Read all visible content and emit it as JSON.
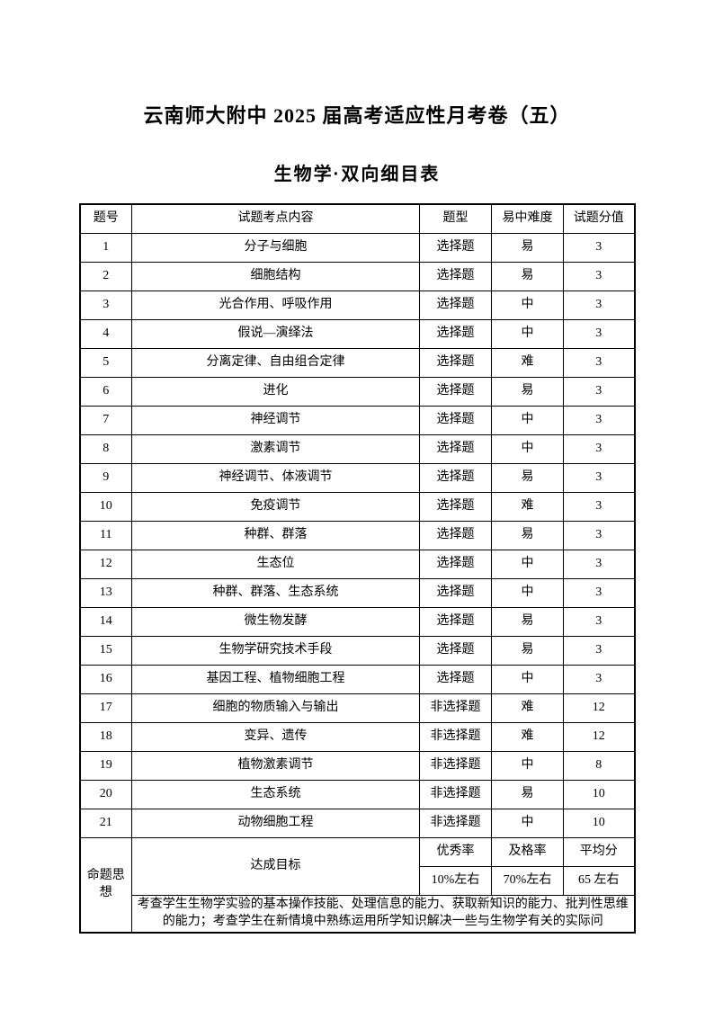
{
  "doc": {
    "title": "云南师大附中 2025 届高考适应性月考卷（五）",
    "subtitle": "生物学·双向细目表"
  },
  "table": {
    "headers": [
      "题号",
      "试题考点内容",
      "题型",
      "易中难度",
      "试题分值"
    ],
    "rows": [
      {
        "no": "1",
        "content": "分子与细胞",
        "type": "选择题",
        "difficulty": "易",
        "score": "3"
      },
      {
        "no": "2",
        "content": "细胞结构",
        "type": "选择题",
        "difficulty": "易",
        "score": "3"
      },
      {
        "no": "3",
        "content": "光合作用、呼吸作用",
        "type": "选择题",
        "difficulty": "中",
        "score": "3"
      },
      {
        "no": "4",
        "content": "假说—演绎法",
        "type": "选择题",
        "difficulty": "中",
        "score": "3"
      },
      {
        "no": "5",
        "content": "分离定律、自由组合定律",
        "type": "选择题",
        "difficulty": "难",
        "score": "3"
      },
      {
        "no": "6",
        "content": "进化",
        "type": "选择题",
        "difficulty": "易",
        "score": "3"
      },
      {
        "no": "7",
        "content": "神经调节",
        "type": "选择题",
        "difficulty": "中",
        "score": "3"
      },
      {
        "no": "8",
        "content": "激素调节",
        "type": "选择题",
        "difficulty": "中",
        "score": "3"
      },
      {
        "no": "9",
        "content": "神经调节、体液调节",
        "type": "选择题",
        "difficulty": "易",
        "score": "3"
      },
      {
        "no": "10",
        "content": "免疫调节",
        "type": "选择题",
        "difficulty": "难",
        "score": "3"
      },
      {
        "no": "11",
        "content": "种群、群落",
        "type": "选择题",
        "difficulty": "易",
        "score": "3"
      },
      {
        "no": "12",
        "content": "生态位",
        "type": "选择题",
        "difficulty": "中",
        "score": "3"
      },
      {
        "no": "13",
        "content": "种群、群落、生态系统",
        "type": "选择题",
        "difficulty": "中",
        "score": "3"
      },
      {
        "no": "14",
        "content": "微生物发酵",
        "type": "选择题",
        "difficulty": "易",
        "score": "3"
      },
      {
        "no": "15",
        "content": "生物学研究技术手段",
        "type": "选择题",
        "difficulty": "易",
        "score": "3"
      },
      {
        "no": "16",
        "content": "基因工程、植物细胞工程",
        "type": "选择题",
        "difficulty": "中",
        "score": "3"
      },
      {
        "no": "17",
        "content": "细胞的物质输入与输出",
        "type": "非选择题",
        "difficulty": "难",
        "score": "12"
      },
      {
        "no": "18",
        "content": "变异、遗传",
        "type": "非选择题",
        "difficulty": "难",
        "score": "12"
      },
      {
        "no": "19",
        "content": "植物激素调节",
        "type": "非选择题",
        "difficulty": "中",
        "score": "8"
      },
      {
        "no": "20",
        "content": "生态系统",
        "type": "非选择题",
        "difficulty": "易",
        "score": "10"
      },
      {
        "no": "21",
        "content": "动物细胞工程",
        "type": "非选择题",
        "difficulty": "中",
        "score": "10"
      }
    ]
  },
  "footer": {
    "proposition_label": "命题思想",
    "goal_label": "达成目标",
    "metrics": [
      {
        "label": "优秀率",
        "value": "10%左右"
      },
      {
        "label": "及格率",
        "value": "70%左右"
      },
      {
        "label": "平均分",
        "value": "65 左右"
      }
    ],
    "note": "考查学生生物学实验的基本操作技能、处理信息的能力、获取新知识的能力、批判性思维的能力；考查学生在新情境中熟练运用所学知识解决一些与生物学有关的实际问"
  }
}
